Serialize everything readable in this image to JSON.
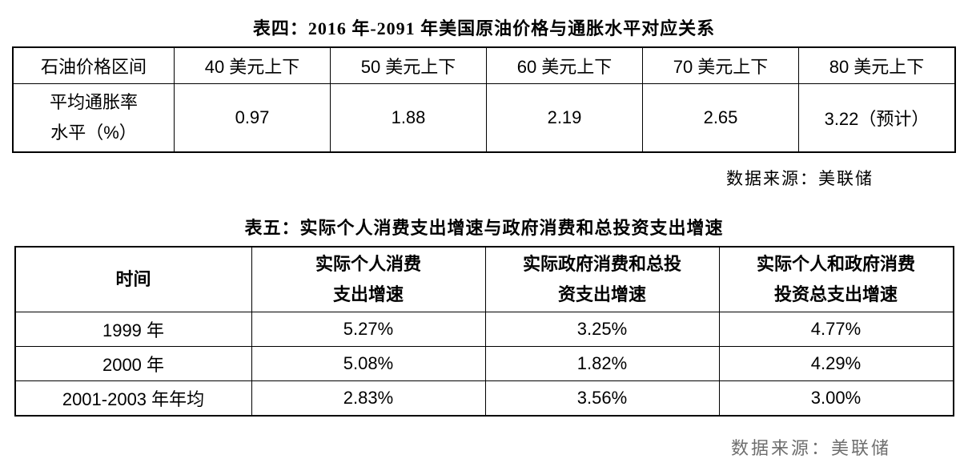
{
  "table4": {
    "title": "表四：2016 年-2091 年美国原油价格与通胀水平对应关系",
    "header": [
      "石油价格区间",
      "40 美元上下",
      "50 美元上下",
      "60 美元上下",
      "70 美元上下",
      "80 美元上下"
    ],
    "row_label_lines": [
      "平均通胀率",
      "水平（%）"
    ],
    "values": [
      "0.97",
      "1.88",
      "2.19",
      "2.65",
      "3.22（预计）"
    ],
    "source": "数据来源：美联储"
  },
  "table5": {
    "title": "表五：实际个人消费支出增速与政府消费和总投资支出增速",
    "headers": [
      [
        "时间"
      ],
      [
        "实际个人消费",
        "支出增速"
      ],
      [
        "实际政府消费和总投",
        "资支出增速"
      ],
      [
        "实际个人和政府消费",
        "投资总支出增速"
      ]
    ],
    "rows": [
      [
        "1999 年",
        "5.27%",
        "3.25%",
        "4.77%"
      ],
      [
        "2000 年",
        "5.08%",
        "1.82%",
        "4.29%"
      ],
      [
        "2001-2003 年年均",
        "2.83%",
        "3.56%",
        "3.00%"
      ]
    ],
    "source": "数据来源：美联储"
  }
}
